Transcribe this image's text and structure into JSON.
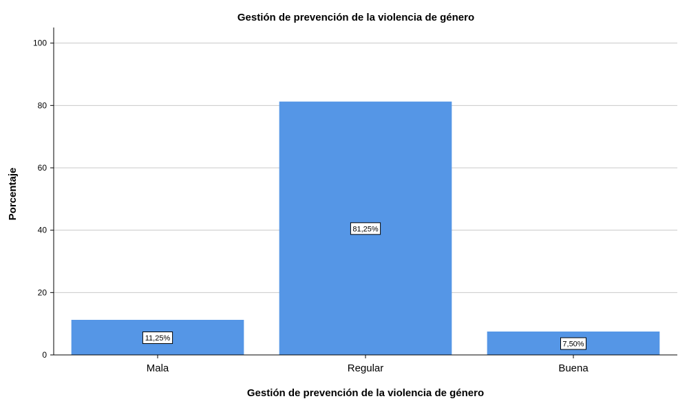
{
  "chart_data": {
    "type": "bar",
    "title": "Gestión de prevención de la violencia de género",
    "xlabel": "Gestión de prevención de la violencia de género",
    "ylabel": "Porcentaje",
    "categories": [
      "Mala",
      "Regular",
      "Buena"
    ],
    "values": [
      11.25,
      81.25,
      7.5
    ],
    "data_labels": [
      "11,25%",
      "81,25%",
      "7,50%"
    ],
    "yticks": [
      "0",
      "20",
      "40",
      "60",
      "80",
      "100"
    ],
    "ylim": [
      0,
      105
    ],
    "grid": true,
    "bar_color": "#5596e6"
  }
}
